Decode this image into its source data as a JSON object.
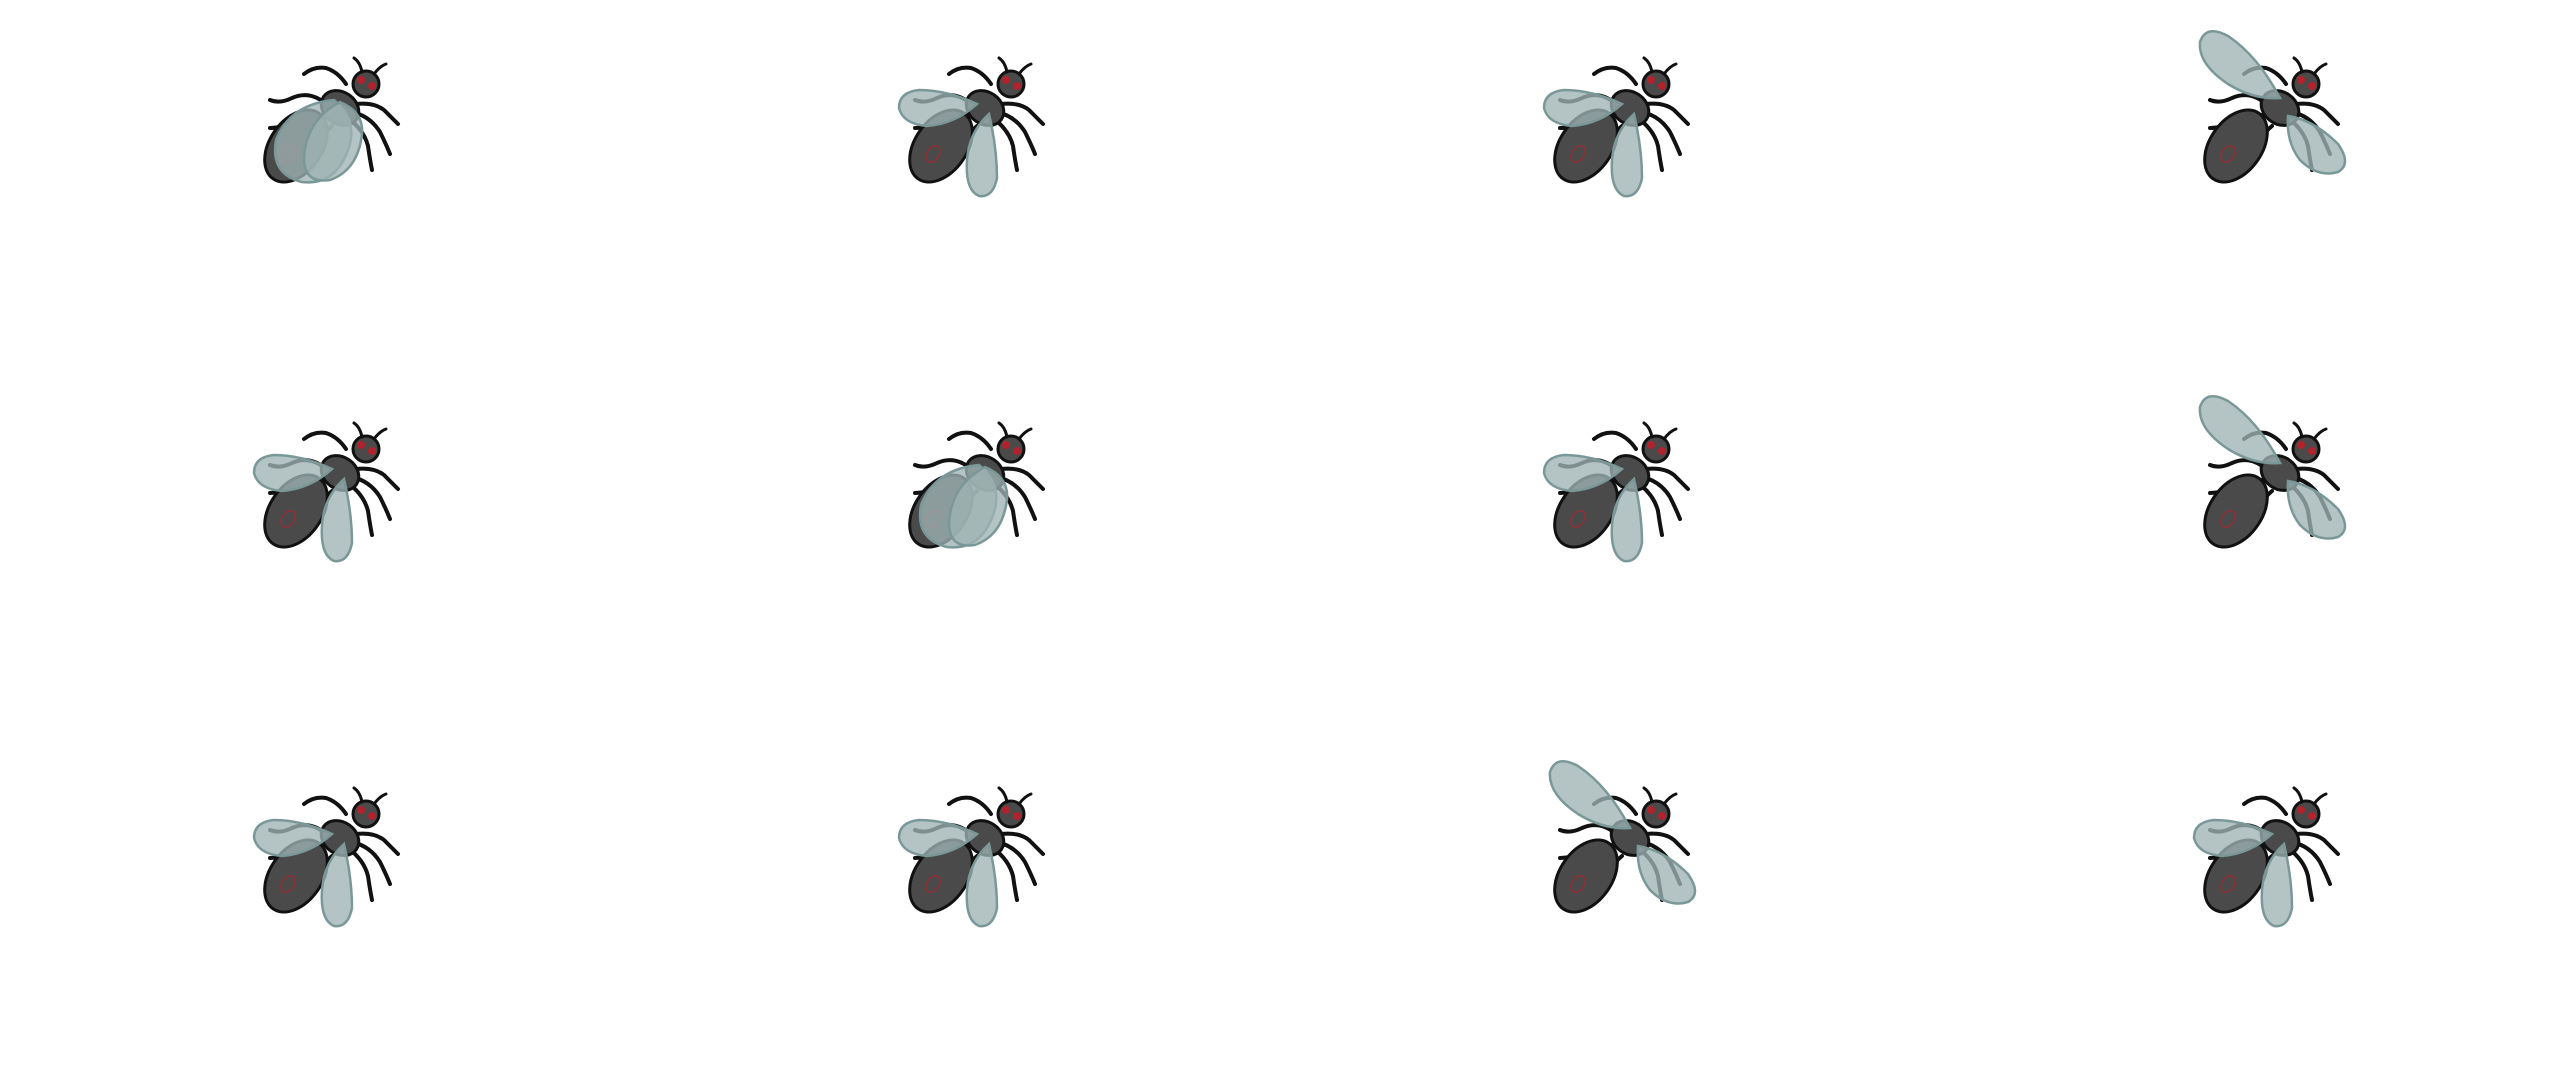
{
  "sprite_sheet": {
    "rows": 3,
    "columns": 4,
    "background": "#ffffff",
    "palette": {
      "body": "#4a4a4a",
      "outline": "#111111",
      "eye": "#b1222c",
      "wing_fill": "#9fb4b4",
      "wing_edge": "#7b9898"
    },
    "frames": [
      {
        "name": "frame-01",
        "wing_pose": "folded"
      },
      {
        "name": "frame-02",
        "wing_pose": "spread-low"
      },
      {
        "name": "frame-03",
        "wing_pose": "spread-low"
      },
      {
        "name": "frame-04",
        "wing_pose": "raised"
      },
      {
        "name": "frame-05",
        "wing_pose": "spread-low"
      },
      {
        "name": "frame-06",
        "wing_pose": "folded"
      },
      {
        "name": "frame-07",
        "wing_pose": "spread-low"
      },
      {
        "name": "frame-08",
        "wing_pose": "raised"
      },
      {
        "name": "frame-09",
        "wing_pose": "spread-low"
      },
      {
        "name": "frame-10",
        "wing_pose": "spread-low"
      },
      {
        "name": "frame-11",
        "wing_pose": "raised"
      },
      {
        "name": "frame-12",
        "wing_pose": "spread-low"
      }
    ]
  }
}
